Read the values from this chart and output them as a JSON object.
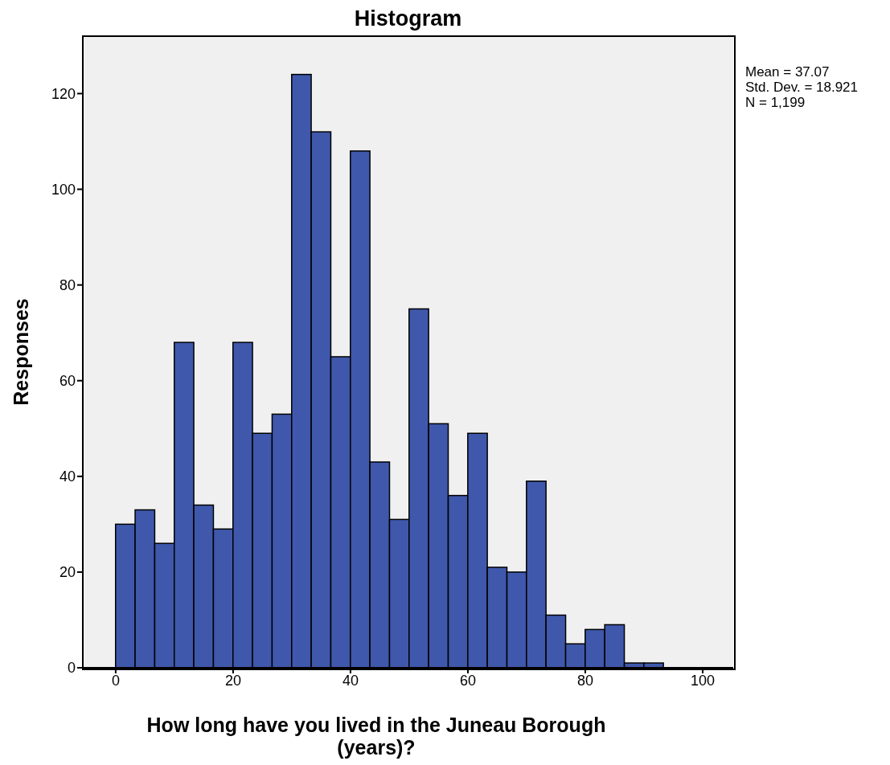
{
  "chart_data": {
    "type": "histogram",
    "title": "Histogram",
    "xlabel": "How long have you lived in the Juneau Borough (years)?",
    "ylabel": "Responses",
    "bins": [
      0,
      3.33,
      6.67,
      10,
      13.33,
      16.67,
      20,
      23.33,
      26.67,
      30,
      33.33,
      36.67,
      40,
      43.33,
      46.67,
      50,
      53.33,
      56.67,
      60,
      63.33,
      66.67,
      70,
      73.33,
      76.67,
      80,
      83.33,
      86.67,
      90,
      93.33
    ],
    "values": [
      30,
      33,
      26,
      68,
      34,
      29,
      68,
      49,
      53,
      124,
      112,
      65,
      108,
      43,
      31,
      75,
      51,
      36,
      49,
      21,
      20,
      39,
      11,
      5,
      8,
      9,
      1,
      1
    ],
    "color": "#3f58ab",
    "xlim": [
      -5.6,
      105.2
    ],
    "xticks": [
      0,
      20,
      40,
      60,
      80,
      100
    ],
    "ylim": [
      0,
      132
    ],
    "yticks": [
      0,
      20,
      40,
      60,
      80,
      100,
      120
    ],
    "annotations": [
      "Mean = 37.07",
      "Std. Dev. = 18.921",
      "N = 1,199"
    ]
  }
}
